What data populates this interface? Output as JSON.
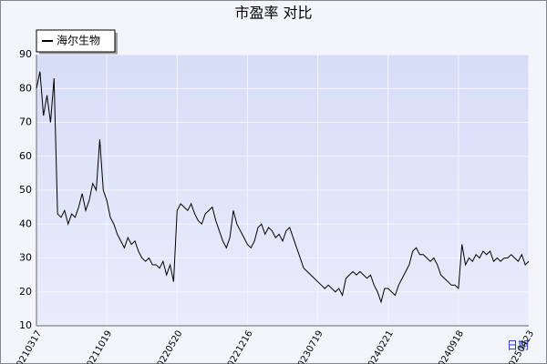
{
  "chart_data": {
    "type": "line",
    "title": "市盈率  对比",
    "x_label": "日期",
    "categories": [
      "20210317",
      null,
      null,
      null,
      null,
      null,
      null,
      null,
      null,
      null,
      null,
      null,
      null,
      null,
      null,
      null,
      null,
      null,
      null,
      null,
      "20211019",
      null,
      null,
      null,
      null,
      null,
      null,
      null,
      null,
      null,
      null,
      null,
      null,
      null,
      null,
      null,
      null,
      null,
      null,
      null,
      "20220520",
      null,
      null,
      null,
      null,
      null,
      null,
      null,
      null,
      null,
      null,
      null,
      null,
      null,
      null,
      null,
      null,
      null,
      null,
      null,
      "20221216",
      null,
      null,
      null,
      null,
      null,
      null,
      null,
      null,
      null,
      null,
      null,
      null,
      null,
      null,
      null,
      null,
      null,
      null,
      null,
      "20230719",
      null,
      null,
      null,
      null,
      null,
      null,
      null,
      null,
      null,
      null,
      null,
      null,
      null,
      null,
      null,
      null,
      null,
      null,
      null,
      "20240221",
      null,
      null,
      null,
      null,
      null,
      null,
      null,
      null,
      null,
      null,
      null,
      null,
      null,
      null,
      null,
      null,
      null,
      null,
      null,
      "20240918",
      null,
      null,
      null,
      null,
      null,
      null,
      null,
      null,
      null,
      null,
      null,
      null,
      null,
      null,
      null,
      null,
      null,
      null,
      null,
      "20250423"
    ],
    "series": [
      {
        "name": "海尔生物",
        "color": "#000000",
        "values": [
          80,
          85,
          72,
          78,
          70,
          83,
          43,
          42,
          44,
          40,
          43,
          42,
          45,
          49,
          44,
          47,
          52,
          50,
          65,
          50,
          47,
          42,
          40,
          37,
          35,
          33,
          36,
          34,
          35,
          32,
          30,
          29,
          30,
          28,
          28,
          27,
          29,
          25,
          28,
          23,
          44,
          46,
          45,
          44,
          46,
          43,
          41,
          40,
          43,
          44,
          45,
          41,
          38,
          35,
          33,
          36,
          44,
          40,
          38,
          36,
          34,
          33,
          35,
          39,
          40,
          37,
          39,
          38,
          36,
          37,
          35,
          38,
          39,
          36,
          33,
          30,
          27,
          26,
          25,
          24,
          23,
          22,
          21,
          22,
          21,
          20,
          21,
          19,
          24,
          25,
          26,
          25,
          26,
          25,
          24,
          25,
          22,
          20,
          17,
          21,
          21,
          20,
          19,
          22,
          24,
          26,
          28,
          32,
          33,
          31,
          31,
          30,
          29,
          30,
          28,
          25,
          24,
          23,
          22,
          22,
          21,
          34,
          28,
          30,
          29,
          31,
          30,
          32,
          31,
          32,
          29,
          30,
          29,
          30,
          30,
          31,
          30,
          29,
          31,
          28,
          29
        ]
      }
    ],
    "ylim": [
      10,
      90
    ],
    "yticks": [
      10,
      20,
      30,
      40,
      50,
      60,
      70,
      80,
      90
    ],
    "grid": true,
    "legend": "top-left"
  }
}
